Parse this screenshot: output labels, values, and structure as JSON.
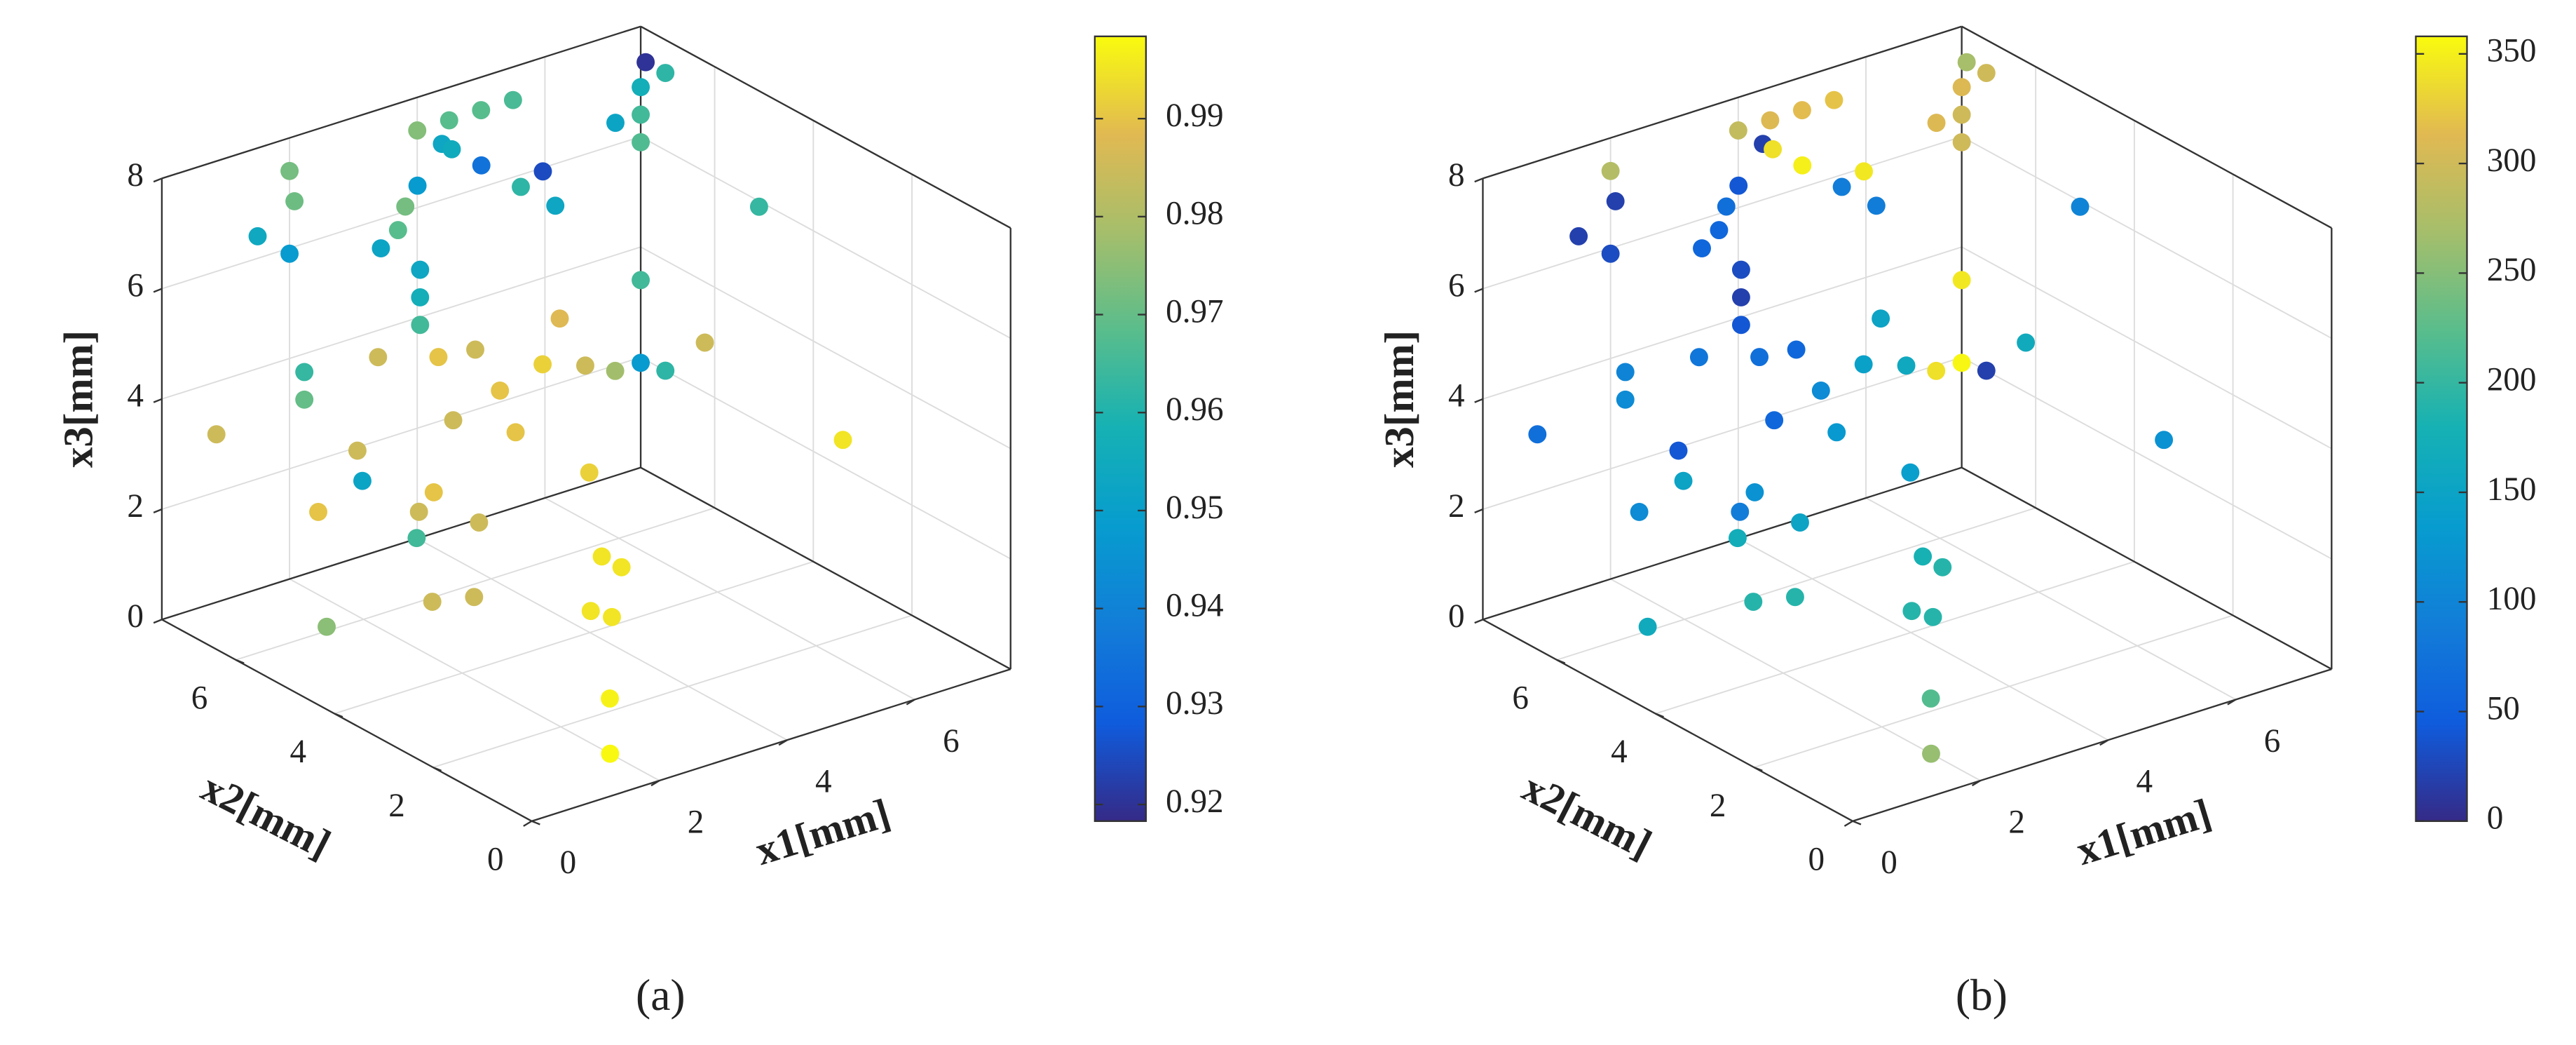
{
  "chart_data": [
    {
      "type": "scatter3d",
      "caption": "(a)",
      "xlabel": "x1[mm]",
      "ylabel": "x2[mm]",
      "zlabel": "x3[mm]",
      "xlim": [
        0,
        7.5
      ],
      "ylim": [
        0,
        7.5
      ],
      "zlim": [
        0,
        8
      ],
      "xticks": [
        0,
        2,
        4,
        6
      ],
      "yticks": [
        0,
        2,
        4,
        6
      ],
      "zticks": [
        0,
        2,
        4,
        6,
        8
      ],
      "grid": true,
      "colormap": "parula",
      "clim": [
        0.9183,
        0.9984
      ],
      "cticks": [
        0.92,
        0.93,
        0.94,
        0.95,
        0.96,
        0.97,
        0.98,
        0.99
      ],
      "x": [
        7.5,
        7.5,
        7.5,
        6.1,
        7.5,
        7.5,
        5.5,
        5.0,
        4.5,
        4.0,
        4.0,
        4.0,
        4.0,
        4.5,
        4.0,
        4.0,
        7.5,
        2.0,
        2.0,
        2.0,
        1.5,
        2.5,
        2.0,
        3.0,
        1.5,
        2.5,
        2.5,
        2.5,
        7.5,
        7.5,
        7.5,
        7.5,
        7.1,
        6.0,
        5.5,
        6.4,
        4.6,
        4.1,
        3.0,
        4.6,
        2.0,
        2.0,
        4.1,
        5.0,
        0.7,
        2.6,
        2.6,
        6.0,
        3.1,
        1.6,
        3.1,
        3.5,
        2.6,
        5.5,
        5.5,
        4.4,
        4.5,
        3.0,
        3.5,
        1.5,
        3.0,
        2.0,
        7.5
      ],
      "y": [
        7.4,
        7.0,
        7.5,
        6.2,
        7.5,
        7.5,
        7.5,
        7.5,
        7.5,
        7.5,
        7.0,
        6.8,
        6.2,
        5.6,
        5.4,
        4.7,
        5.1,
        7.5,
        7.4,
        7.5,
        7.5,
        5.8,
        5.3,
        6.2,
        5.0,
        5.5,
        5.5,
        5.5,
        7.5,
        7.5,
        7.0,
        6.2,
        7.5,
        7.2,
        6.9,
        7.2,
        7.1,
        7.2,
        7.0,
        6.6,
        7.2,
        7.2,
        6.9,
        6.8,
        7.3,
        6.9,
        6.8,
        6.6,
        6.0,
        6.4,
        6.3,
        5.6,
        5.7,
        5.7,
        5.3,
        4.5,
        4.2,
        5.9,
        5.7,
        6.1,
        2.3,
        1.0,
        3.4
      ],
      "z": [
        7.4,
        7.4,
        6.9,
        7.4,
        6.4,
        5.9,
        7.4,
        7.4,
        7.4,
        7.4,
        7.4,
        7.4,
        7.4,
        7.4,
        7.4,
        7.4,
        5.9,
        7.4,
        6.9,
        5.9,
        6.4,
        7.4,
        7.4,
        7.4,
        7.4,
        6.4,
        5.9,
        5.4,
        3.4,
        1.9,
        2.0,
        2.9,
        1.9,
        3.4,
        2.9,
        2.4,
        3.4,
        3.4,
        3.9,
        2.9,
        3.9,
        3.4,
        2.4,
        1.9,
        3.2,
        2.4,
        1.9,
        0.9,
        1.9,
        1.9,
        1.4,
        1.4,
        1.4,
        0,
        0,
        0,
        0,
        0,
        0,
        0,
        0,
        0,
        2.5
      ],
      "values": [
        0.92,
        0.962,
        0.957,
        0.952,
        0.965,
        0.967,
        0.966,
        0.968,
        0.968,
        0.974,
        0.953,
        0.955,
        0.935,
        0.925,
        0.962,
        0.953,
        0.963,
        0.972,
        0.971,
        0.948,
        0.954,
        0.972,
        0.968,
        0.948,
        0.952,
        0.953,
        0.957,
        0.965,
        0.965,
        0.948,
        0.962,
        0.985,
        0.978,
        0.988,
        0.992,
        0.985,
        0.985,
        0.99,
        0.985,
        0.99,
        0.963,
        0.97,
        0.985,
        0.99,
        0.985,
        0.985,
        0.952,
        0.992,
        0.99,
        0.99,
        0.985,
        0.985,
        0.965,
        0.995,
        0.995,
        0.995,
        0.995,
        0.985,
        0.985,
        0.975,
        0.997,
        0.998,
        0.995
      ]
    },
    {
      "type": "scatter3d",
      "caption": "(b)",
      "xlabel": "x1[mm]",
      "ylabel": "x2[mm]",
      "zlabel": "x3[mm]",
      "xlim": [
        0,
        7.5
      ],
      "ylim": [
        0,
        7.5
      ],
      "zlim": [
        0,
        8
      ],
      "xticks": [
        0,
        2,
        4,
        6
      ],
      "yticks": [
        0,
        2,
        4,
        6
      ],
      "zticks": [
        0,
        2,
        4,
        6,
        8
      ],
      "grid": true,
      "colormap": "parula",
      "clim": [
        0,
        358
      ],
      "cticks": [
        0,
        50,
        100,
        150,
        200,
        250,
        300,
        350
      ],
      "x": [
        7.5,
        7.5,
        7.5,
        6.1,
        7.5,
        7.5,
        5.5,
        5.0,
        4.5,
        4.0,
        4.0,
        4.0,
        4.0,
        4.5,
        4.0,
        4.0,
        7.5,
        2.0,
        2.0,
        2.0,
        1.5,
        2.5,
        2.0,
        3.0,
        1.5,
        2.5,
        2.5,
        2.5,
        7.5,
        7.5,
        7.5,
        7.5,
        7.1,
        6.0,
        5.5,
        6.4,
        4.6,
        4.1,
        3.0,
        4.6,
        2.0,
        2.0,
        4.1,
        5.0,
        0.7,
        2.6,
        2.6,
        6.0,
        3.1,
        1.6,
        3.1,
        3.5,
        2.6,
        5.5,
        5.5,
        4.4,
        4.5,
        3.0,
        3.5,
        1.5,
        3.0,
        2.0,
        7.5
      ],
      "y": [
        7.4,
        7.0,
        7.5,
        6.2,
        7.5,
        7.5,
        7.5,
        7.5,
        7.5,
        7.5,
        7.0,
        6.8,
        6.2,
        5.6,
        5.4,
        4.7,
        5.1,
        7.5,
        7.4,
        7.5,
        7.5,
        5.8,
        5.3,
        6.2,
        5.0,
        5.5,
        5.5,
        5.5,
        7.5,
        7.5,
        7.0,
        6.2,
        7.5,
        7.2,
        6.9,
        7.2,
        7.1,
        7.2,
        7.0,
        6.6,
        7.2,
        7.2,
        6.9,
        6.8,
        7.3,
        6.9,
        6.8,
        6.6,
        6.0,
        6.4,
        6.3,
        5.6,
        5.7,
        5.7,
        5.3,
        4.5,
        4.2,
        5.9,
        5.7,
        6.1,
        2.3,
        1.0,
        3.4
      ],
      "z": [
        7.4,
        7.4,
        6.9,
        7.4,
        6.4,
        5.9,
        7.4,
        7.4,
        7.4,
        7.4,
        7.4,
        7.4,
        7.4,
        7.4,
        7.4,
        7.4,
        5.9,
        7.4,
        6.9,
        5.9,
        6.4,
        7.4,
        7.4,
        7.4,
        7.4,
        6.4,
        5.9,
        5.4,
        3.4,
        1.9,
        2.0,
        2.9,
        1.9,
        3.4,
        2.9,
        2.4,
        3.4,
        3.4,
        3.9,
        2.9,
        3.9,
        3.4,
        2.4,
        1.9,
        3.2,
        2.4,
        1.9,
        0.9,
        1.9,
        1.9,
        1.4,
        1.4,
        1.4,
        0,
        0,
        0,
        0,
        0,
        0,
        0,
        0,
        0,
        2.5
      ],
      "values": [
        270,
        300,
        310,
        310,
        300,
        300,
        320,
        315,
        310,
        290,
        20,
        340,
        350,
        345,
        90,
        90,
        100,
        280,
        20,
        30,
        20,
        70,
        60,
        40,
        60,
        30,
        20,
        40,
        345,
        355,
        20,
        165,
        340,
        150,
        145,
        160,
        60,
        70,
        80,
        110,
        100,
        110,
        60,
        130,
        70,
        40,
        150,
        140,
        120,
        110,
        90,
        150,
        170,
        180,
        190,
        190,
        190,
        190,
        190,
        165,
        220,
        260,
        120
      ]
    }
  ]
}
